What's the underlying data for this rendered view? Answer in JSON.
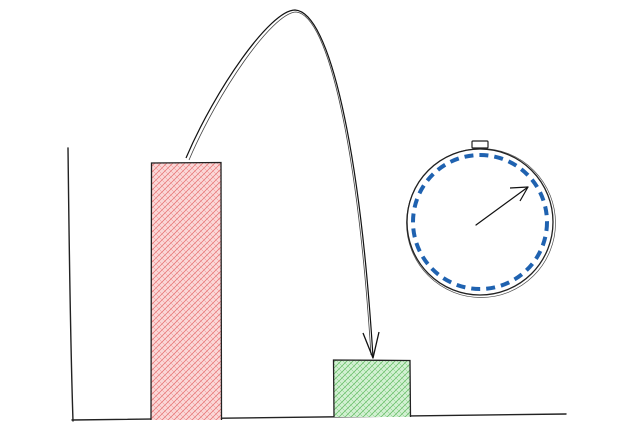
{
  "diagram": {
    "bars": [
      {
        "name": "tall-bar",
        "fill": "#f4a3a3",
        "stroke": "#222222",
        "relative_height": 1.0
      },
      {
        "name": "short-bar",
        "fill": "#9fdd9f",
        "stroke": "#222222",
        "relative_height": 0.23
      }
    ],
    "arrow": {
      "from": "tall-bar",
      "to": "short-bar",
      "color": "#111111"
    },
    "stopwatch": {
      "ring_color": "#1f62b0",
      "outline_color": "#222222",
      "hand_color": "#111111"
    },
    "axis_color": "#222222"
  }
}
